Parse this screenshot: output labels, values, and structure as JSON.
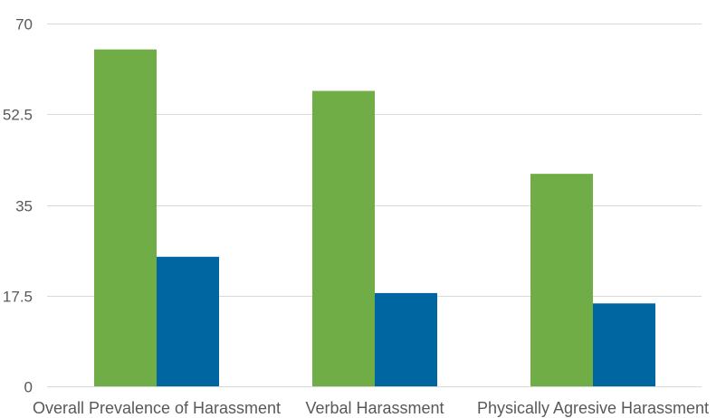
{
  "chart_data": {
    "type": "bar",
    "title": "",
    "xlabel": "",
    "ylabel": "",
    "categories": [
      "Overall Prevalence of Harassment",
      "Verbal Harassment",
      "Physically Agresive Harassment"
    ],
    "series": [
      {
        "values": [
          65,
          57,
          41
        ],
        "color": "#70ad47"
      },
      {
        "values": [
          25,
          18,
          16
        ],
        "color": "#0066a1"
      }
    ],
    "ylim": [
      0,
      70
    ],
    "yticks": [
      0,
      17.5,
      35,
      52.5,
      70
    ],
    "ytick_labels": [
      "0",
      "17.5",
      "35",
      "52.5",
      "70"
    ],
    "grid": true,
    "legend": "none"
  }
}
